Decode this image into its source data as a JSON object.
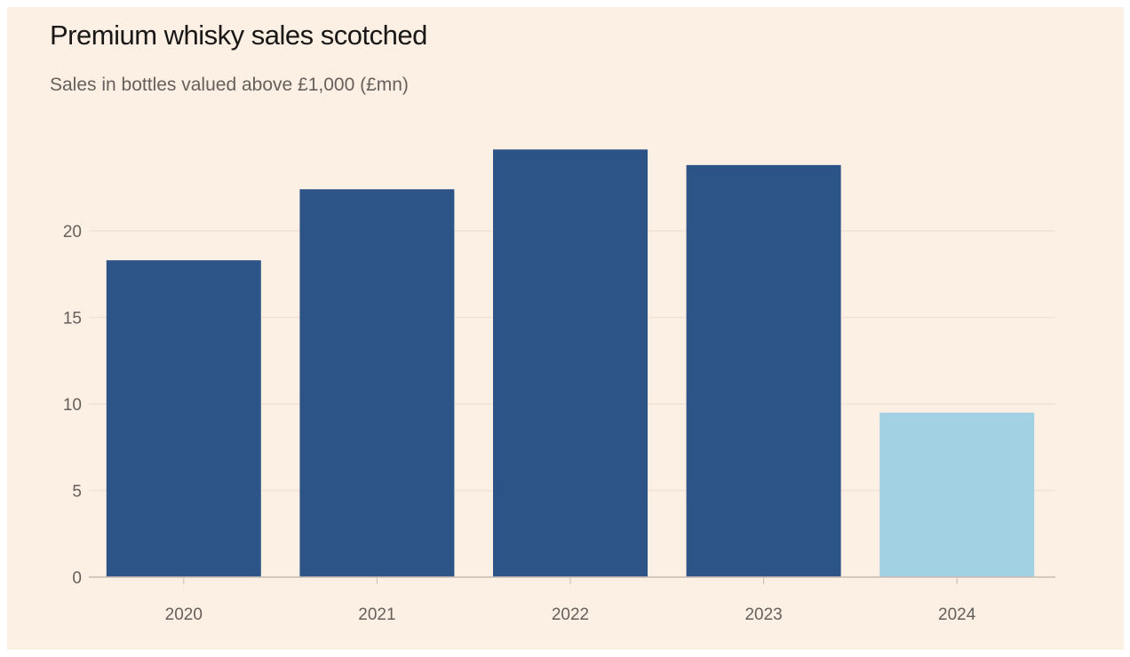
{
  "chart_data": {
    "type": "bar",
    "title": "Premium whisky sales scotched",
    "subtitle": "Sales in bottles valued above £1,000 (£mn)",
    "xlabel": "",
    "ylabel": "",
    "categories": [
      "2020",
      "2021",
      "2022",
      "2023",
      "2024"
    ],
    "values": [
      18.3,
      22.4,
      24.7,
      23.8,
      9.5
    ],
    "colors": [
      "#2d5486",
      "#2d5486",
      "#2d5486",
      "#2d5486",
      "#a1d1e3"
    ],
    "ylim": [
      0,
      25
    ],
    "yticks": [
      0,
      5,
      10,
      15,
      20
    ],
    "grid": true,
    "legend": "none"
  }
}
